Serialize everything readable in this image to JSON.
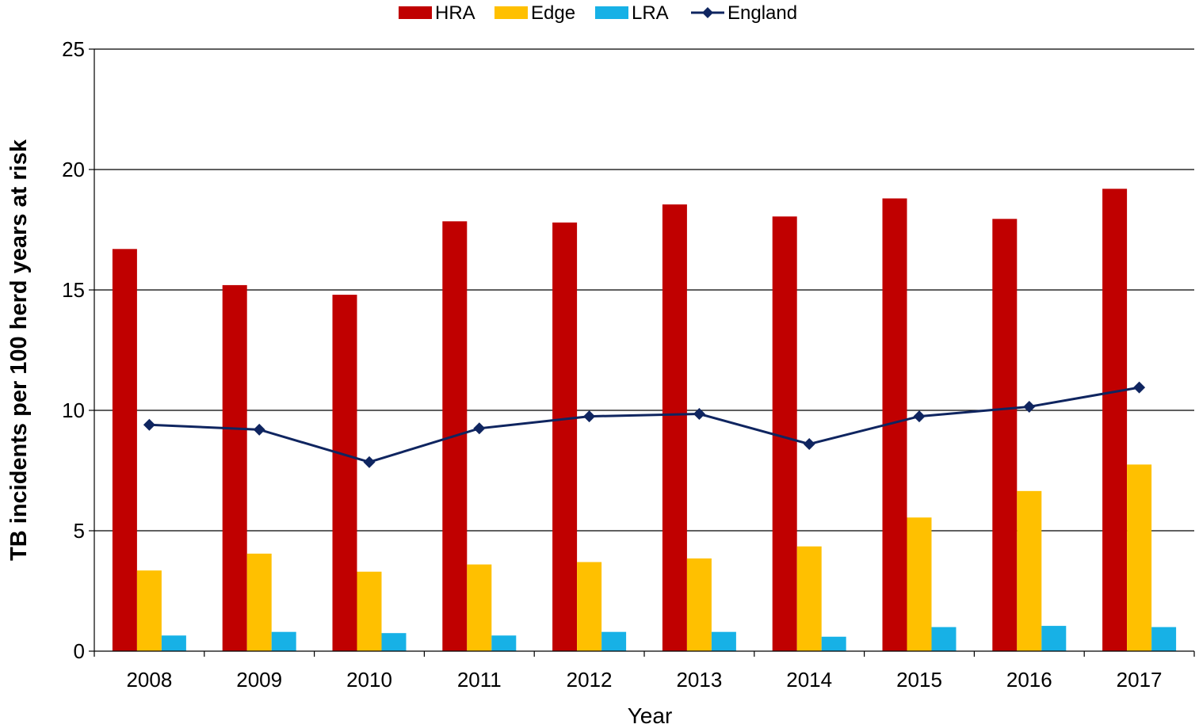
{
  "chart_data": {
    "type": "bar",
    "categories": [
      "2008",
      "2009",
      "2010",
      "2011",
      "2012",
      "2013",
      "2014",
      "2015",
      "2016",
      "2017"
    ],
    "series": [
      {
        "name": "HRA",
        "type": "bar",
        "color": "#C00000",
        "values": [
          16.7,
          15.2,
          14.8,
          17.85,
          17.8,
          18.55,
          18.05,
          18.8,
          17.95,
          19.2
        ]
      },
      {
        "name": "Edge",
        "type": "bar",
        "color": "#FFC000",
        "values": [
          3.35,
          4.05,
          3.3,
          3.6,
          3.7,
          3.85,
          4.35,
          5.55,
          6.65,
          7.75
        ]
      },
      {
        "name": "LRA",
        "type": "bar",
        "color": "#17B1E6",
        "values": [
          0.65,
          0.8,
          0.75,
          0.65,
          0.8,
          0.8,
          0.6,
          1.0,
          1.05,
          1.0
        ]
      },
      {
        "name": "England",
        "type": "line",
        "color": "#0F2560",
        "values": [
          9.4,
          9.2,
          7.85,
          9.25,
          9.75,
          9.85,
          8.6,
          9.75,
          10.15,
          10.95
        ]
      }
    ],
    "xlabel": "Year",
    "ylabel": "TB incidents per 100 herd years at risk",
    "ylim": [
      0,
      25
    ],
    "yticks": [
      0,
      5,
      10,
      15,
      20,
      25
    ],
    "grid": true,
    "legend_position": "top-center"
  }
}
